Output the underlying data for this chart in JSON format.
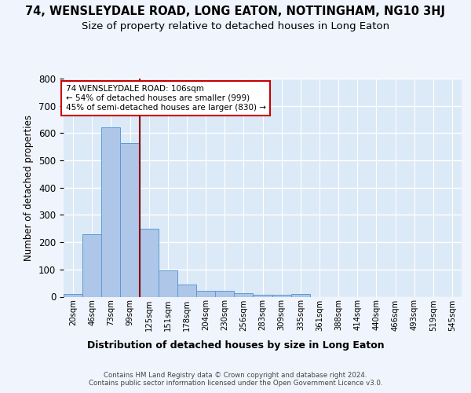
{
  "title": "74, WENSLEYDALE ROAD, LONG EATON, NOTTINGHAM, NG10 3HJ",
  "subtitle": "Size of property relative to detached houses in Long Eaton",
  "xlabel": "Distribution of detached houses by size in Long Eaton",
  "ylabel": "Number of detached properties",
  "bar_labels": [
    "20sqm",
    "46sqm",
    "73sqm",
    "99sqm",
    "125sqm",
    "151sqm",
    "178sqm",
    "204sqm",
    "230sqm",
    "256sqm",
    "283sqm",
    "309sqm",
    "335sqm",
    "361sqm",
    "388sqm",
    "414sqm",
    "440sqm",
    "466sqm",
    "493sqm",
    "519sqm",
    "545sqm"
  ],
  "bar_values": [
    10,
    228,
    620,
    565,
    250,
    97,
    45,
    22,
    22,
    14,
    8,
    6,
    10,
    0,
    0,
    0,
    0,
    0,
    0,
    0,
    0
  ],
  "bar_color": "#aec6e8",
  "bar_edge_color": "#5b9bd5",
  "background_color": "#dce9f7",
  "grid_color": "#ffffff",
  "vline_x": 3.5,
  "vline_color": "#8b0000",
  "annotation_text": "74 WENSLEYDALE ROAD: 106sqm\n← 54% of detached houses are smaller (999)\n45% of semi-detached houses are larger (830) →",
  "annotation_box_color": "#ffffff",
  "annotation_box_edge": "#cc0000",
  "footer": "Contains HM Land Registry data © Crown copyright and database right 2024.\nContains public sector information licensed under the Open Government Licence v3.0.",
  "ylim": [
    0,
    800
  ],
  "title_fontsize": 10.5,
  "subtitle_fontsize": 9.5,
  "fig_bg": "#f0f4fc"
}
